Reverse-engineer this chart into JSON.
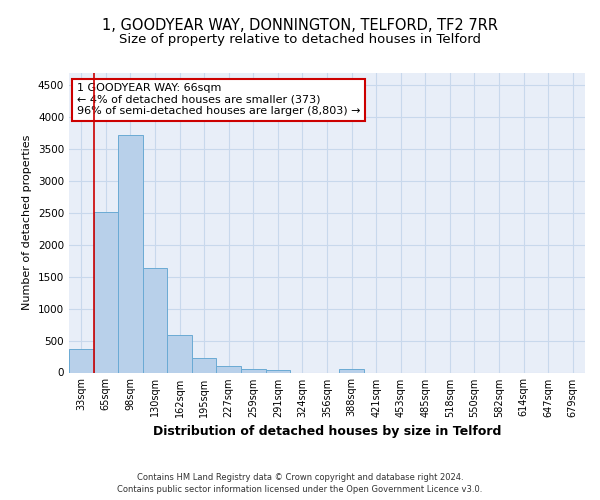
{
  "title_line1": "1, GOODYEAR WAY, DONNINGTON, TELFORD, TF2 7RR",
  "title_line2": "Size of property relative to detached houses in Telford",
  "xlabel": "Distribution of detached houses by size in Telford",
  "ylabel": "Number of detached properties",
  "categories": [
    "33sqm",
    "65sqm",
    "98sqm",
    "130sqm",
    "162sqm",
    "195sqm",
    "227sqm",
    "259sqm",
    "291sqm",
    "324sqm",
    "356sqm",
    "388sqm",
    "421sqm",
    "453sqm",
    "485sqm",
    "518sqm",
    "550sqm",
    "582sqm",
    "614sqm",
    "647sqm",
    "679sqm"
  ],
  "values": [
    370,
    2520,
    3720,
    1640,
    590,
    235,
    105,
    60,
    45,
    0,
    0,
    60,
    0,
    0,
    0,
    0,
    0,
    0,
    0,
    0,
    0
  ],
  "bar_color": "#b8d0ea",
  "bar_edge_color": "#6aaad4",
  "grid_color": "#c8d8ec",
  "background_color": "#e8eef8",
  "annotation_line1": "1 GOODYEAR WAY: 66sqm",
  "annotation_line2": "← 4% of detached houses are smaller (373)",
  "annotation_line3": "96% of semi-detached houses are larger (8,803) →",
  "annotation_box_color": "#ffffff",
  "annotation_box_edge_color": "#cc0000",
  "vline_color": "#cc0000",
  "vline_x_index": 1,
  "ylim": [
    0,
    4700
  ],
  "yticks": [
    0,
    500,
    1000,
    1500,
    2000,
    2500,
    3000,
    3500,
    4000,
    4500
  ],
  "footer": "Contains HM Land Registry data © Crown copyright and database right 2024.\nContains public sector information licensed under the Open Government Licence v3.0.",
  "title1_fontsize": 10.5,
  "title2_fontsize": 9.5,
  "xlabel_fontsize": 9,
  "ylabel_fontsize": 8,
  "tick_fontsize": 7,
  "annotation_fontsize": 8,
  "footer_fontsize": 6
}
